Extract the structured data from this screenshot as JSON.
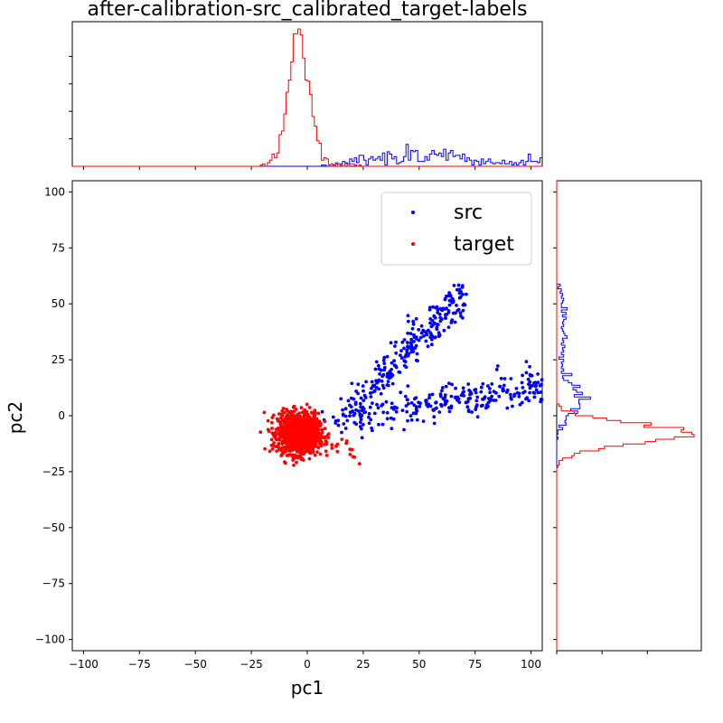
{
  "chart_data": {
    "type": "scatter",
    "title": "after-calibration-src_calibrated_target-labels",
    "xlabel": "pc1",
    "ylabel": "pc2",
    "xlim": [
      -105,
      105
    ],
    "ylim": [
      -105,
      105
    ],
    "x_ticks": [
      -100,
      -75,
      -50,
      -25,
      0,
      25,
      50,
      75,
      100
    ],
    "y_ticks": [
      -100,
      -75,
      -50,
      -25,
      0,
      25,
      50,
      75,
      100
    ],
    "legend": {
      "position": "upper right",
      "entries": [
        "src",
        "target"
      ]
    },
    "series": [
      {
        "name": "src",
        "color": "#0000ff",
        "clusters": [
          {
            "shape": "diagonal-arm",
            "from": [
              18,
              2
            ],
            "to": [
              70,
              54
            ],
            "width": 4,
            "count": 260
          },
          {
            "shape": "horizontal-arm",
            "from": [
              10,
              -3
            ],
            "to": [
              105,
              14
            ],
            "width": 4,
            "count": 260
          }
        ]
      },
      {
        "name": "target",
        "color": "#ff0000",
        "clusters": [
          {
            "shape": "blob",
            "center": [
              -4,
              -8
            ],
            "spread": [
              4.5,
              4.5
            ],
            "count": 1200
          },
          {
            "shape": "tail",
            "from": [
              2,
              -6
            ],
            "to": [
              22,
              -18
            ],
            "count": 30
          }
        ]
      }
    ],
    "marginal_x": {
      "orientation": "top",
      "description": "histogram of pc1",
      "src_range": [
        0,
        105
      ],
      "target_range": [
        -15,
        15
      ]
    },
    "marginal_y": {
      "orientation": "right",
      "description": "histogram of pc2",
      "src_range": [
        -20,
        56
      ],
      "target_range": [
        -20,
        8
      ]
    }
  }
}
